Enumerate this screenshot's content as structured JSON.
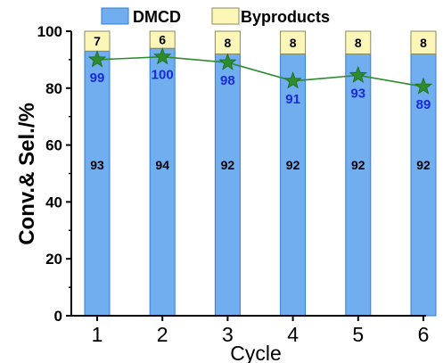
{
  "chart_data": {
    "type": "bar",
    "stacked": true,
    "categories": [
      "1",
      "2",
      "3",
      "4",
      "5",
      "6"
    ],
    "series": [
      {
        "name": "DMCD",
        "values": [
          93,
          94,
          92,
          92,
          92,
          92
        ],
        "color": "#70aef0",
        "edge": "#2f7fd6"
      },
      {
        "name": "Byproducts",
        "values": [
          7,
          6,
          8,
          8,
          8,
          8
        ],
        "color": "#fdf6b9",
        "edge": "#8b8b5a"
      }
    ],
    "line_series": {
      "values": [
        90,
        91,
        89,
        82.5,
        84.5,
        80.5
      ],
      "labels": [
        "99",
        "100",
        "98",
        "91",
        "93",
        "89"
      ],
      "color": "#2e8b2e",
      "marker": "star",
      "label_color": "#1a2bd6"
    },
    "xlabel": "Cycle",
    "ylabel": "Conv.& Sel./%",
    "ylim": [
      0,
      100
    ],
    "yticks": [
      "0",
      "20",
      "40",
      "60",
      "80",
      "100"
    ],
    "legend_position": "top",
    "grid": false
  }
}
